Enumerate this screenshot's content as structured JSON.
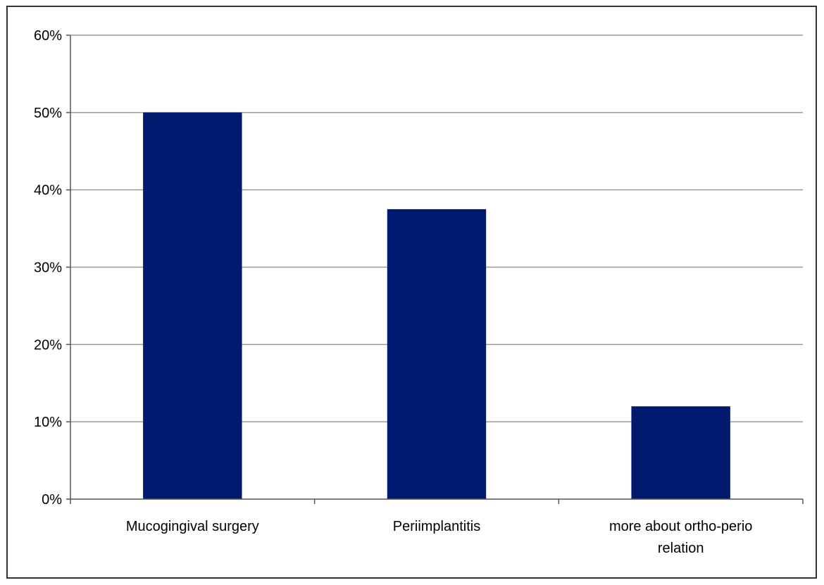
{
  "chart_data": {
    "type": "bar",
    "title": "",
    "xlabel": "",
    "ylabel": "",
    "categories": [
      [
        "Mucogingival surgery"
      ],
      [
        "Periimplantitis"
      ],
      [
        "more about ortho-perio",
        "relation"
      ]
    ],
    "values": [
      0.5,
      0.375,
      0.12
    ],
    "ylim": [
      0,
      0.6
    ],
    "yticks": [
      0,
      0.1,
      0.2,
      0.3,
      0.4,
      0.5,
      0.6
    ],
    "ytick_labels": [
      "0%",
      "10%",
      "20%",
      "30%",
      "40%",
      "50%",
      "60%"
    ],
    "grid": true,
    "legend": "none",
    "bar_color": "#001a70",
    "grid_color": "#9a9a9a",
    "axis_color": "#555555",
    "frame_color": "#333333"
  }
}
